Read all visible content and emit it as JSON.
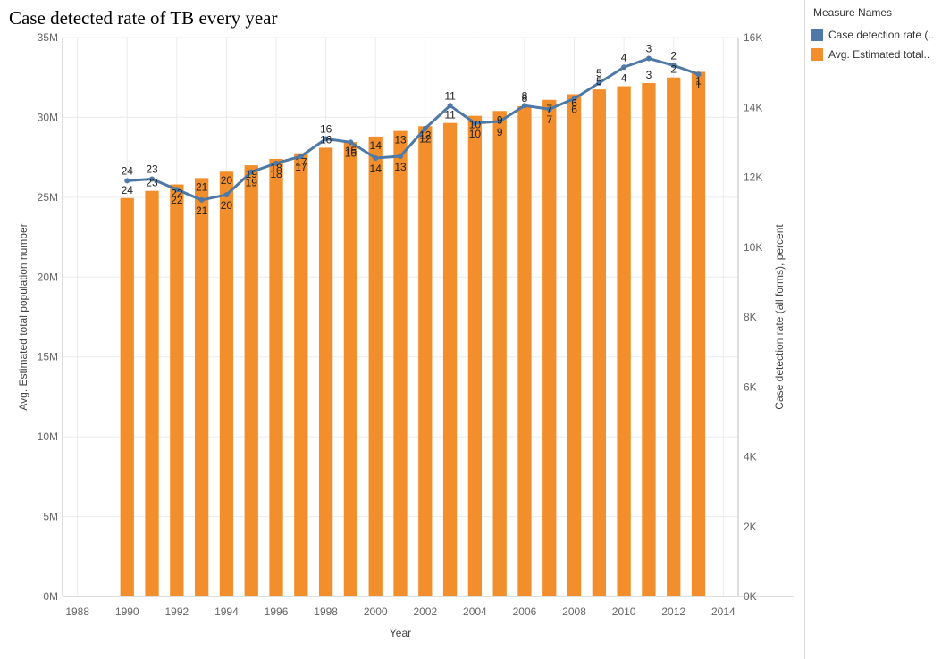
{
  "title": "Case detected rate of TB every year",
  "legend": {
    "title": "Measure Names",
    "items": [
      {
        "label": "Case detection rate (..",
        "color": "#4e79a7"
      },
      {
        "label": "Avg. Estimated total..",
        "color": "#f28e2b"
      }
    ]
  },
  "chart_data": {
    "type": "bar+line",
    "title": "Case detected rate of TB every year",
    "xlabel": "Year",
    "x_ticks": [
      "1988",
      "1990",
      "1992",
      "1994",
      "1996",
      "1998",
      "2000",
      "2002",
      "2004",
      "2006",
      "2008",
      "2010",
      "2012",
      "2014"
    ],
    "x_range": [
      1987.4,
      2014.6
    ],
    "categories": [
      1990,
      1991,
      1992,
      1993,
      1994,
      1995,
      1996,
      1997,
      1998,
      1999,
      2000,
      2001,
      2002,
      2003,
      2004,
      2005,
      2006,
      2007,
      2008,
      2009,
      2010,
      2011,
      2012,
      2013
    ],
    "left_axis": {
      "label": "Avg. Estimated total population number",
      "range": [
        0,
        35000000
      ],
      "ticks": [
        {
          "v": 0,
          "t": "0M"
        },
        {
          "v": 5000000,
          "t": "5M"
        },
        {
          "v": 10000000,
          "t": "10M"
        },
        {
          "v": 15000000,
          "t": "15M"
        },
        {
          "v": 20000000,
          "t": "20M"
        },
        {
          "v": 25000000,
          "t": "25M"
        },
        {
          "v": 30000000,
          "t": "30M"
        },
        {
          "v": 35000000,
          "t": "35M"
        }
      ]
    },
    "right_axis": {
      "label": "Case detection rate (all forms), percent",
      "range": [
        0,
        16000
      ],
      "ticks": [
        {
          "v": 0,
          "t": "0K"
        },
        {
          "v": 2000,
          "t": "2K"
        },
        {
          "v": 4000,
          "t": "4K"
        },
        {
          "v": 6000,
          "t": "6K"
        },
        {
          "v": 8000,
          "t": "8K"
        },
        {
          "v": 10000,
          "t": "10K"
        },
        {
          "v": 12000,
          "t": "12K"
        },
        {
          "v": 14000,
          "t": "14K"
        },
        {
          "v": 16000,
          "t": "16K"
        }
      ]
    },
    "series": [
      {
        "name": "Avg. Estimated total..",
        "type": "bar",
        "axis": "left",
        "color": "#f28e2b",
        "values": [
          24950000,
          25400000,
          25800000,
          26200000,
          26600000,
          27000000,
          27400000,
          27750000,
          28100000,
          28450000,
          28800000,
          29150000,
          29450000,
          29650000,
          30100000,
          30400000,
          30700000,
          31100000,
          31450000,
          31750000,
          31950000,
          32150000,
          32500000,
          32850000
        ],
        "labels": [
          "24",
          "23",
          "22",
          "21",
          "20",
          "19",
          "18",
          "17",
          "16",
          "15",
          "14",
          "13",
          "12",
          "11",
          "10",
          "9",
          "8",
          "7",
          "6",
          "5",
          "4",
          "3",
          "2",
          "1"
        ]
      },
      {
        "name": "Case detection rate (..",
        "type": "line",
        "axis": "right",
        "color": "#4e79a7",
        "values": [
          11900,
          11950,
          11650,
          11350,
          11500,
          12150,
          12400,
          12600,
          13100,
          13000,
          12550,
          12600,
          13400,
          14050,
          13550,
          13600,
          14050,
          13950,
          14250,
          14700,
          15150,
          15400,
          15200,
          14950
        ],
        "labels": [
          "24",
          "23",
          "22",
          "21",
          "20",
          "19",
          "18",
          "17",
          "16",
          "15",
          "14",
          "13",
          "12",
          "11",
          "10",
          "9",
          "8",
          "7",
          "6",
          "5",
          "4",
          "3",
          "2",
          "1"
        ]
      }
    ],
    "grid": true
  }
}
